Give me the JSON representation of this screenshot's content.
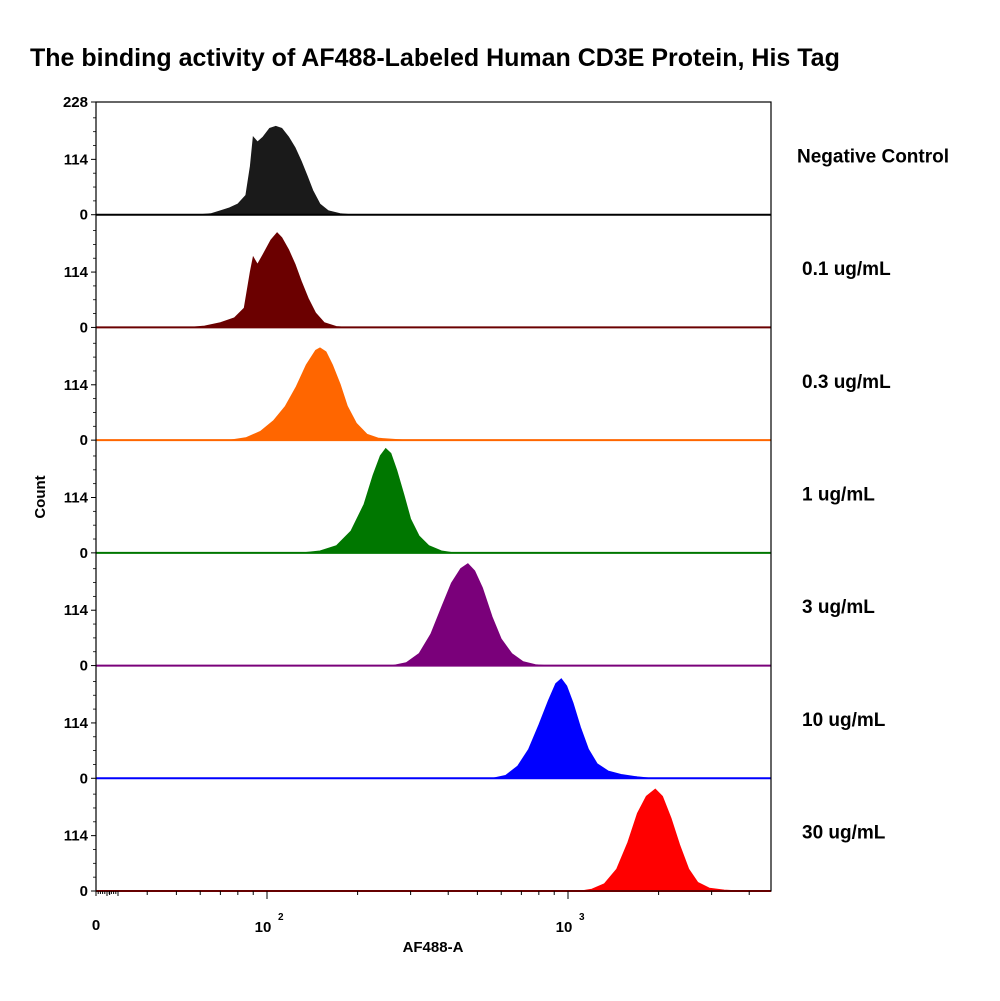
{
  "chart_data": {
    "type": "area",
    "title": "The binding activity of AF488-Labeled Human CD3E Protein, His Tag",
    "xlabel": "AF488-A",
    "ylabel": "Count",
    "xscale": "biexponential-log",
    "xlim": [
      0,
      5000
    ],
    "x_tick_labels": [
      {
        "value": 0,
        "label": "0"
      },
      {
        "value": 100,
        "base": "10",
        "exp": "2"
      },
      {
        "value": 1000,
        "base": "10",
        "exp": "3"
      }
    ],
    "y_tick_labels": [
      "0",
      "114",
      "228"
    ],
    "ylim": [
      0,
      228
    ],
    "panels": [
      {
        "name": "Negative Control",
        "color": "#1a1a1a",
        "peak_x": 105,
        "peak_count": 185,
        "points": [
          [
            60,
            0
          ],
          [
            65,
            2
          ],
          [
            70,
            8
          ],
          [
            75,
            14
          ],
          [
            80,
            22
          ],
          [
            85,
            40
          ],
          [
            88,
            100
          ],
          [
            90,
            160
          ],
          [
            93,
            150
          ],
          [
            97,
            160
          ],
          [
            102,
            178
          ],
          [
            107,
            182
          ],
          [
            112,
            178
          ],
          [
            118,
            160
          ],
          [
            124,
            138
          ],
          [
            130,
            110
          ],
          [
            136,
            80
          ],
          [
            142,
            50
          ],
          [
            150,
            22
          ],
          [
            160,
            8
          ],
          [
            175,
            2
          ],
          [
            190,
            0
          ]
        ]
      },
      {
        "name": "0.1 ug/mL",
        "color": "#6b0000",
        "peak_x": 108,
        "peak_count": 195,
        "points": [
          [
            55,
            0
          ],
          [
            62,
            3
          ],
          [
            70,
            10
          ],
          [
            78,
            20
          ],
          [
            84,
            40
          ],
          [
            88,
            115
          ],
          [
            90,
            145
          ],
          [
            93,
            130
          ],
          [
            97,
            150
          ],
          [
            103,
            180
          ],
          [
            108,
            195
          ],
          [
            112,
            185
          ],
          [
            118,
            160
          ],
          [
            124,
            130
          ],
          [
            130,
            95
          ],
          [
            137,
            60
          ],
          [
            145,
            30
          ],
          [
            155,
            10
          ],
          [
            170,
            2
          ],
          [
            185,
            0
          ]
        ]
      },
      {
        "name": "0.3 ug/mL",
        "color": "#ff6600",
        "peak_x": 150,
        "peak_count": 190,
        "points": [
          [
            75,
            0
          ],
          [
            85,
            5
          ],
          [
            95,
            18
          ],
          [
            105,
            40
          ],
          [
            115,
            70
          ],
          [
            125,
            110
          ],
          [
            135,
            155
          ],
          [
            145,
            185
          ],
          [
            150,
            190
          ],
          [
            157,
            182
          ],
          [
            165,
            155
          ],
          [
            175,
            115
          ],
          [
            185,
            70
          ],
          [
            198,
            35
          ],
          [
            215,
            12
          ],
          [
            235,
            4
          ],
          [
            260,
            2
          ],
          [
            290,
            0
          ]
        ]
      },
      {
        "name": "1 ug/mL",
        "color": "#007700",
        "peak_x": 248,
        "peak_count": 215,
        "points": [
          [
            130,
            0
          ],
          [
            150,
            4
          ],
          [
            170,
            15
          ],
          [
            190,
            45
          ],
          [
            210,
            100
          ],
          [
            225,
            160
          ],
          [
            238,
            200
          ],
          [
            248,
            215
          ],
          [
            258,
            205
          ],
          [
            270,
            170
          ],
          [
            285,
            120
          ],
          [
            300,
            70
          ],
          [
            320,
            35
          ],
          [
            345,
            15
          ],
          [
            380,
            4
          ],
          [
            420,
            0
          ]
        ]
      },
      {
        "name": "3 ug/mL",
        "color": "#7a007a",
        "peak_x": 465,
        "peak_count": 210,
        "points": [
          [
            260,
            0
          ],
          [
            290,
            6
          ],
          [
            320,
            25
          ],
          [
            350,
            65
          ],
          [
            380,
            120
          ],
          [
            410,
            170
          ],
          [
            440,
            200
          ],
          [
            465,
            210
          ],
          [
            490,
            195
          ],
          [
            520,
            160
          ],
          [
            560,
            100
          ],
          [
            600,
            55
          ],
          [
            650,
            25
          ],
          [
            710,
            8
          ],
          [
            780,
            2
          ],
          [
            850,
            0
          ]
        ]
      },
      {
        "name": "10 ug/mL",
        "color": "#0000ff",
        "peak_x": 950,
        "peak_count": 205,
        "points": [
          [
            560,
            0
          ],
          [
            620,
            6
          ],
          [
            680,
            25
          ],
          [
            740,
            60
          ],
          [
            800,
            110
          ],
          [
            860,
            160
          ],
          [
            910,
            195
          ],
          [
            950,
            205
          ],
          [
            990,
            190
          ],
          [
            1040,
            155
          ],
          [
            1100,
            105
          ],
          [
            1170,
            60
          ],
          [
            1250,
            30
          ],
          [
            1360,
            15
          ],
          [
            1500,
            8
          ],
          [
            1700,
            3
          ],
          [
            1900,
            0
          ]
        ]
      },
      {
        "name": "30 ug/mL",
        "color": "#ff0000",
        "peak_x": 1950,
        "peak_count": 210,
        "points": [
          [
            1100,
            0
          ],
          [
            1200,
            4
          ],
          [
            1320,
            15
          ],
          [
            1450,
            45
          ],
          [
            1580,
            100
          ],
          [
            1700,
            160
          ],
          [
            1820,
            195
          ],
          [
            1950,
            210
          ],
          [
            2060,
            195
          ],
          [
            2200,
            150
          ],
          [
            2350,
            95
          ],
          [
            2520,
            45
          ],
          [
            2700,
            18
          ],
          [
            2950,
            6
          ],
          [
            3300,
            2
          ],
          [
            3800,
            0
          ]
        ]
      }
    ]
  }
}
